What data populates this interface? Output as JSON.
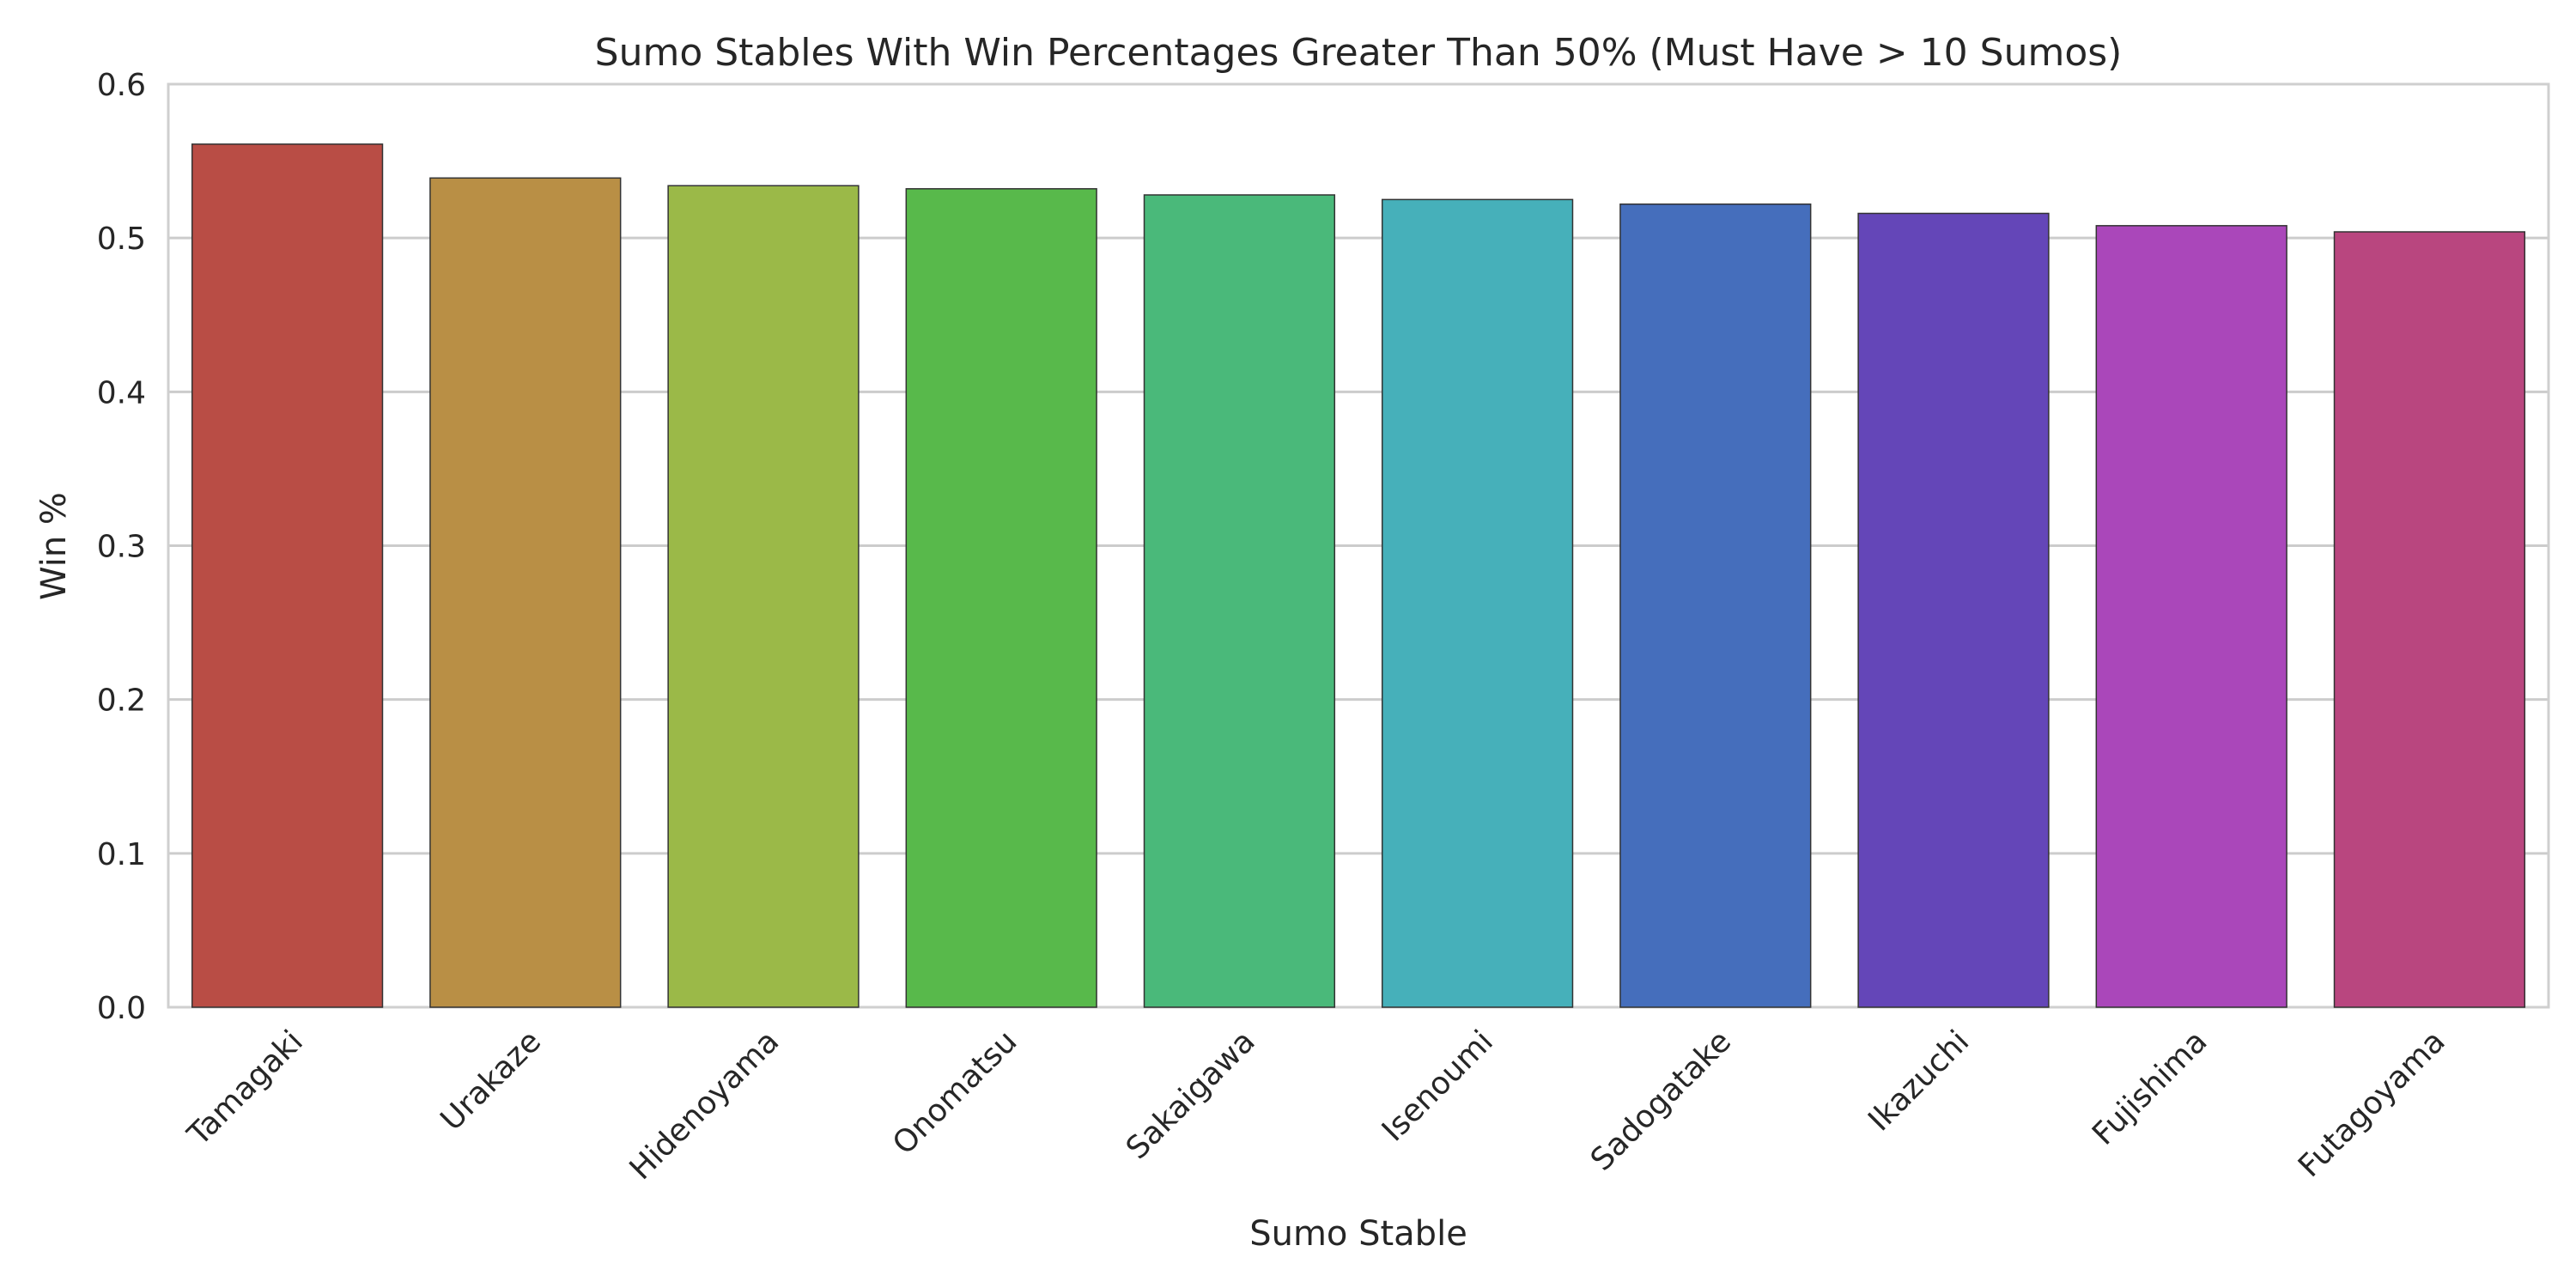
{
  "chart_data": {
    "type": "bar",
    "title": "Sumo Stables With Win Percentages Greater Than 50% (Must Have > 10 Sumos)",
    "xlabel": "Sumo Stable",
    "ylabel": "Win %",
    "ylim": [
      0,
      0.6
    ],
    "yticks": [
      "0.0",
      "0.1",
      "0.2",
      "0.3",
      "0.4",
      "0.5",
      "0.6"
    ],
    "grid": "horizontal",
    "categories": [
      "Tamagaki",
      "Urakaze",
      "Hidenoyama",
      "Onomatsu",
      "Sakaigawa",
      "Isenoumi",
      "Sadogatake",
      "Ikazuchi",
      "Fujishima",
      "Futagoyama"
    ],
    "values": [
      0.561,
      0.539,
      0.534,
      0.532,
      0.528,
      0.525,
      0.522,
      0.516,
      0.508,
      0.504
    ],
    "colors": [
      "#b94d45",
      "#b98f45",
      "#9bb948",
      "#58b94b",
      "#4ab97a",
      "#46b0ba",
      "#456ebc",
      "#6446b8",
      "#aa47ba",
      "#b9467f"
    ]
  }
}
